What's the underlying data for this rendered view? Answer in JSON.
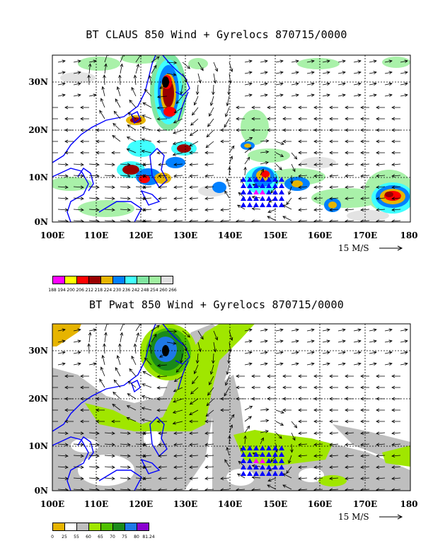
{
  "panels": [
    {
      "title": "BT CLAUS 850 Wind + Gyrelocs 870715/0000",
      "x_ticks": [
        "100E",
        "110E",
        "120E",
        "130E",
        "140E",
        "150E",
        "160E",
        "170E",
        "180"
      ],
      "y_ticks": [
        "0N",
        "10N",
        "20N",
        "30N"
      ],
      "scale_label": "15 M/S",
      "colorbar": {
        "colors": [
          "#ff00ff",
          "#ffff00",
          "#ff0000",
          "#990000",
          "#e6b400",
          "#0080ff",
          "#40ffff",
          "#80e6a0",
          "#a0f0a0",
          "#e0e0e0"
        ],
        "labels": [
          "188",
          "194",
          "200",
          "206",
          "212",
          "218",
          "224",
          "230",
          "236",
          "242",
          "248",
          "254",
          "260",
          "266"
        ]
      }
    },
    {
      "title": "BT Pwat 850 Wind + Gyrelocs 870715/0000",
      "x_ticks": [
        "100E",
        "110E",
        "120E",
        "130E",
        "140E",
        "150E",
        "160E",
        "170E",
        "180"
      ],
      "y_ticks": [
        "0N",
        "10N",
        "20N",
        "30N"
      ],
      "scale_label": "15 M/S",
      "colorbar": {
        "colors": [
          "#e6b400",
          "#ffffff",
          "#bebebe",
          "#a0e600",
          "#50c000",
          "#1a8a1a",
          "#1e78e6",
          "#8a00d0"
        ],
        "labels": [
          "0",
          "25",
          "55",
          "60",
          "65",
          "70",
          "75",
          "80",
          "81.24"
        ]
      }
    }
  ],
  "colors": {
    "coast": "#0000ff",
    "gyre_blue": "#0000ff",
    "gyre_magenta": "#ff00ff",
    "storm_center": "#000000"
  }
}
